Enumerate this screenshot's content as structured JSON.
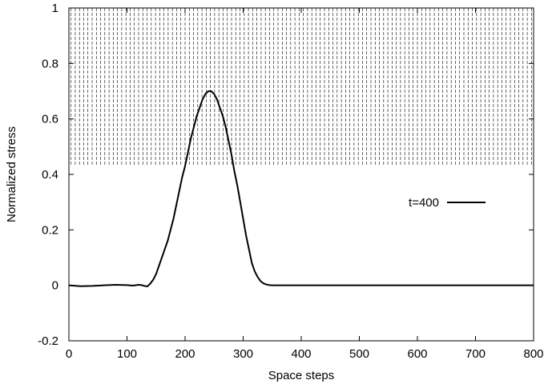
{
  "chart_data": {
    "type": "line",
    "title": "",
    "xlabel": "Space steps",
    "ylabel": "Normalized stress",
    "xlim": [
      0,
      800
    ],
    "ylim": [
      -0.2,
      1
    ],
    "xticks": [
      0,
      100,
      200,
      300,
      400,
      500,
      600,
      700,
      800
    ],
    "xtick_labels": [
      "0",
      "100",
      "200",
      "300",
      "400",
      "500",
      "600",
      "700",
      "800"
    ],
    "yticks": [
      -0.2,
      0,
      0.2,
      0.4,
      0.6,
      0.8,
      1
    ],
    "ytick_labels": [
      "-0.2",
      "0",
      "0.2",
      "0.4",
      "0.6",
      "0.8",
      "1"
    ],
    "grid": false,
    "legend_position": "right",
    "colors": {
      "line": "#000000",
      "hatch": "#000000",
      "axes": "#000000"
    },
    "hatched_region": {
      "description_visible": false,
      "x": [
        0,
        800
      ],
      "y": [
        0.435,
        1
      ],
      "line_style": "dashed",
      "line_count": 110
    },
    "series": [
      {
        "name": "t=400",
        "style": "solid",
        "x": [
          0,
          20,
          40,
          60,
          80,
          100,
          110,
          120,
          125,
          130,
          135,
          140,
          145,
          150,
          155,
          160,
          165,
          170,
          175,
          180,
          185,
          190,
          195,
          200,
          205,
          210,
          215,
          220,
          225,
          230,
          235,
          240,
          245,
          250,
          255,
          260,
          265,
          270,
          275,
          280,
          285,
          290,
          295,
          300,
          305,
          310,
          315,
          320,
          325,
          330,
          335,
          340,
          345,
          350,
          360,
          380,
          400,
          500,
          600,
          700,
          800
        ],
        "y": [
          0,
          -0.003,
          -0.002,
          0.0,
          0.002,
          0.001,
          -0.001,
          0.002,
          0.001,
          -0.002,
          -0.004,
          0.006,
          0.02,
          0.04,
          0.07,
          0.1,
          0.13,
          0.16,
          0.2,
          0.24,
          0.29,
          0.34,
          0.39,
          0.43,
          0.48,
          0.53,
          0.57,
          0.61,
          0.64,
          0.67,
          0.69,
          0.7,
          0.7,
          0.69,
          0.67,
          0.64,
          0.61,
          0.57,
          0.52,
          0.47,
          0.41,
          0.36,
          0.3,
          0.24,
          0.18,
          0.13,
          0.08,
          0.05,
          0.03,
          0.015,
          0.007,
          0.003,
          0.001,
          0.0,
          0.0,
          0.0,
          0.0,
          0.0,
          0.0,
          0.0,
          0.0
        ]
      }
    ]
  }
}
